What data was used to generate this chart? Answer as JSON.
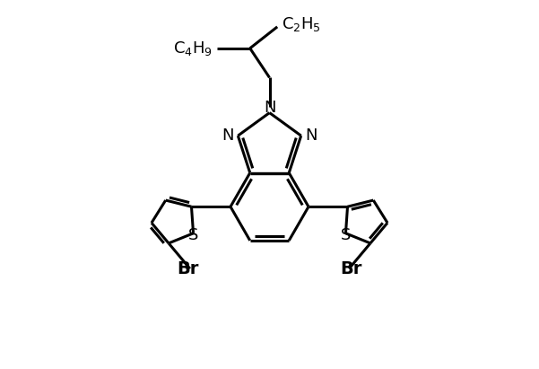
{
  "background_color": "#ffffff",
  "line_color": "#000000",
  "line_width": 2.2,
  "font_size": 13,
  "figure_width": 6.01,
  "figure_height": 4.11,
  "dpi": 100,
  "xlim": [
    0,
    12
  ],
  "ylim": [
    0,
    8.2
  ]
}
